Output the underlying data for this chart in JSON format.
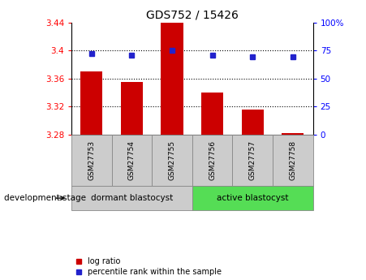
{
  "title": "GDS752 / 15426",
  "samples": [
    "GSM27753",
    "GSM27754",
    "GSM27755",
    "GSM27756",
    "GSM27757",
    "GSM27758"
  ],
  "bar_values": [
    3.37,
    3.355,
    3.44,
    3.34,
    3.315,
    3.282
  ],
  "bar_baseline": 3.28,
  "percentile_values": [
    72,
    71,
    75,
    71,
    69,
    69
  ],
  "ylim_left": [
    3.28,
    3.44
  ],
  "ylim_right": [
    0,
    100
  ],
  "yticks_left": [
    3.28,
    3.32,
    3.36,
    3.4,
    3.44
  ],
  "ytick_labels_left": [
    "3.28",
    "3.32",
    "3.36",
    "3.4",
    "3.44"
  ],
  "yticks_right": [
    0,
    25,
    50,
    75,
    100
  ],
  "ytick_labels_right": [
    "0",
    "25",
    "50",
    "75",
    "100%"
  ],
  "bar_color": "#cc0000",
  "dot_color": "#2222cc",
  "group1_label": "dormant blastocyst",
  "group2_label": "active blastocyst",
  "group1_samples": 3,
  "group2_samples": 3,
  "sample_box_color": "#cccccc",
  "group1_color": "#cccccc",
  "group2_color": "#55dd55",
  "dev_stage_label": "development stage",
  "legend_bar_label": "log ratio",
  "legend_dot_label": "percentile rank within the sample",
  "hline_y": [
    3.32,
    3.36,
    3.4
  ],
  "figsize": [
    4.51,
    3.45
  ],
  "dpi": 100
}
